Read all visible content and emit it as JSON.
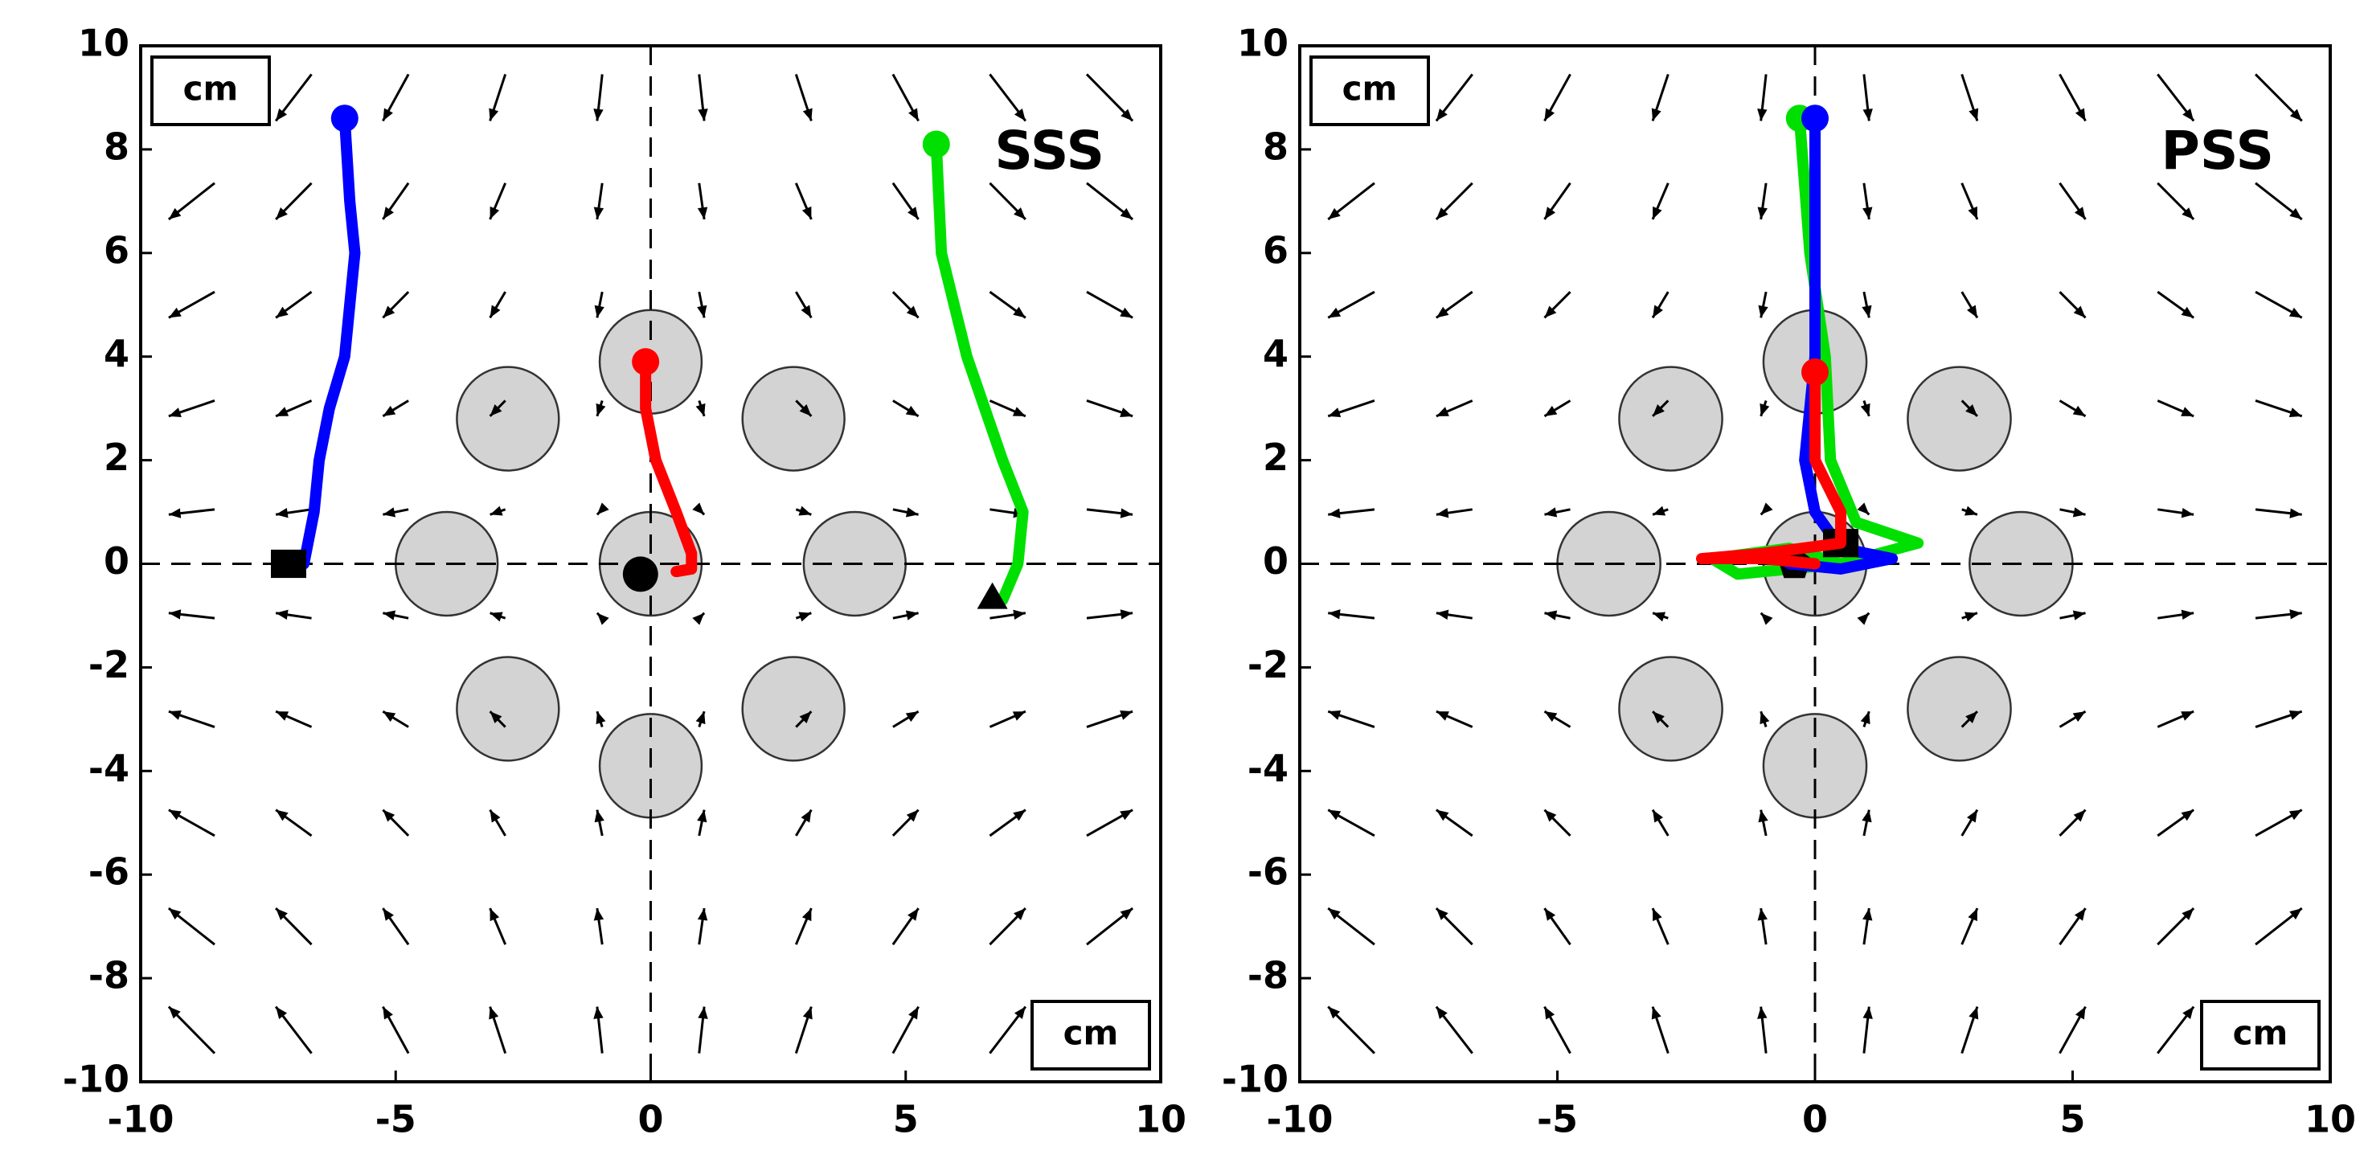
{
  "chart_data": [
    {
      "type": "vector_field",
      "label": "SSS",
      "unit_label": "cm",
      "xlim": [
        -10,
        10
      ],
      "ylim": [
        -10,
        10
      ],
      "xticks": [
        -10,
        -5,
        0,
        5,
        10
      ],
      "yticks": [
        -10,
        -8,
        -6,
        -4,
        -2,
        0,
        2,
        4,
        6,
        8,
        10
      ],
      "targets": {
        "x": [
          0,
          -2.8,
          2.8,
          -4,
          0,
          4,
          -2.8,
          2.8,
          0
        ],
        "y": [
          3.9,
          2.8,
          2.8,
          0,
          0,
          0,
          -2.8,
          -2.8,
          -3.9
        ],
        "radius": 1,
        "color": "#d3d3d3"
      },
      "field": {
        "x": [
          -9,
          -7,
          -5,
          -3,
          -1,
          1,
          3,
          5,
          7,
          9
        ],
        "y": [
          -9,
          -7,
          -5,
          -3,
          -1,
          1,
          3,
          5,
          7,
          9
        ],
        "u": [
          [
            -0.9,
            -0.7,
            -0.5,
            -0.3,
            -0.1,
            0.1,
            0.3,
            0.5,
            0.7,
            0.9
          ],
          [
            -0.9,
            -0.7,
            -0.5,
            -0.3,
            -0.1,
            0.1,
            0.3,
            0.5,
            0.7,
            0.9
          ],
          [
            -0.9,
            -0.7,
            -0.5,
            -0.3,
            -0.1,
            0.1,
            0.3,
            0.5,
            0.7,
            0.9
          ],
          [
            -0.9,
            -0.7,
            -0.5,
            -0.3,
            -0.1,
            0.1,
            0.3,
            0.5,
            0.7,
            0.9
          ],
          [
            -0.9,
            -0.7,
            -0.5,
            -0.3,
            -0.1,
            0.1,
            0.3,
            0.5,
            0.7,
            0.9
          ],
          [
            -0.9,
            -0.7,
            -0.5,
            -0.3,
            -0.1,
            0.1,
            0.3,
            0.5,
            0.7,
            0.9
          ],
          [
            -0.9,
            -0.7,
            -0.5,
            -0.3,
            -0.1,
            0.1,
            0.3,
            0.5,
            0.7,
            0.9
          ],
          [
            -0.9,
            -0.7,
            -0.5,
            -0.3,
            -0.1,
            0.1,
            0.3,
            0.5,
            0.7,
            0.9
          ],
          [
            -0.9,
            -0.7,
            -0.5,
            -0.3,
            -0.1,
            0.1,
            0.3,
            0.5,
            0.7,
            0.9
          ],
          [
            -0.9,
            -0.7,
            -0.5,
            -0.3,
            -0.1,
            0.1,
            0.3,
            0.5,
            0.7,
            0.9
          ]
        ],
        "v": [
          [
            0.9,
            0.9,
            0.9,
            0.9,
            0.9,
            0.9,
            0.9,
            0.9,
            0.9,
            0.9
          ],
          [
            0.7,
            0.7,
            0.7,
            0.7,
            0.7,
            0.7,
            0.7,
            0.7,
            0.7,
            0.7
          ],
          [
            0.5,
            0.5,
            0.5,
            0.5,
            0.5,
            0.5,
            0.5,
            0.5,
            0.5,
            0.5
          ],
          [
            0.3,
            0.3,
            0.3,
            0.3,
            0.3,
            0.3,
            0.3,
            0.3,
            0.3,
            0.3
          ],
          [
            0.1,
            0.1,
            0.1,
            0.1,
            0.1,
            0.1,
            0.1,
            0.1,
            0.1,
            0.1
          ],
          [
            -0.1,
            -0.1,
            -0.1,
            -0.1,
            -0.1,
            -0.1,
            -0.1,
            -0.1,
            -0.1,
            -0.1
          ],
          [
            -0.3,
            -0.3,
            -0.3,
            -0.3,
            -0.3,
            -0.3,
            -0.3,
            -0.3,
            -0.3,
            -0.3
          ],
          [
            -0.5,
            -0.5,
            -0.5,
            -0.5,
            -0.5,
            -0.5,
            -0.5,
            -0.5,
            -0.5,
            -0.5
          ],
          [
            -0.7,
            -0.7,
            -0.7,
            -0.7,
            -0.7,
            -0.7,
            -0.7,
            -0.7,
            -0.7,
            -0.7
          ],
          [
            -0.9,
            -0.9,
            -0.9,
            -0.9,
            -0.9,
            -0.9,
            -0.9,
            -0.9,
            -0.9,
            -0.9
          ]
        ]
      },
      "series": [
        {
          "color": "#0000ff",
          "x": [
            -6.0,
            -5.9,
            -5.8,
            -5.9,
            -6.0,
            -6.3,
            -6.5,
            -6.6,
            -6.8
          ],
          "y": [
            8.6,
            7,
            6,
            5,
            4,
            3,
            2,
            1,
            0
          ],
          "end_marker": {
            "shape": "square",
            "x": -7.1,
            "y": 0
          }
        },
        {
          "color": "#ff0000",
          "x": [
            -0.1,
            -0.1,
            0.1,
            0.5,
            0.8,
            0.8,
            0.5
          ],
          "y": [
            3.9,
            3,
            2,
            1,
            0.2,
            -0.1,
            -0.15
          ],
          "end_marker": {
            "shape": "circle",
            "x": -0.2,
            "y": -0.2
          }
        },
        {
          "color": "#00e000",
          "x": [
            5.6,
            5.7,
            6.2,
            6.9,
            7.3,
            7.2,
            6.9
          ],
          "y": [
            8.1,
            6,
            4,
            2,
            1,
            0,
            -0.7
          ],
          "end_marker": {
            "shape": "triangle",
            "x": 6.7,
            "y": -0.7
          }
        }
      ]
    },
    {
      "type": "vector_field",
      "label": "PSS",
      "unit_label": "cm",
      "xlim": [
        -10,
        10
      ],
      "ylim": [
        -10,
        10
      ],
      "xticks": [
        -10,
        -5,
        0,
        5,
        10
      ],
      "yticks": [
        -10,
        -8,
        -6,
        -4,
        -2,
        0,
        2,
        4,
        6,
        8,
        10
      ],
      "targets": {
        "x": [
          0,
          -2.8,
          2.8,
          -4,
          0,
          4,
          -2.8,
          2.8,
          0
        ],
        "y": [
          3.9,
          2.8,
          2.8,
          0,
          0,
          0,
          -2.8,
          -2.8,
          -3.9
        ],
        "radius": 1,
        "color": "#d3d3d3"
      },
      "field": {
        "x": [
          -9,
          -7,
          -5,
          -3,
          -1,
          1,
          3,
          5,
          7,
          9
        ],
        "y": [
          -9,
          -7,
          -5,
          -3,
          -1,
          1,
          3,
          5,
          7,
          9
        ],
        "u": [
          [
            -0.9,
            -0.7,
            -0.5,
            -0.3,
            -0.1,
            0.1,
            0.3,
            0.5,
            0.7,
            0.9
          ],
          [
            -0.9,
            -0.7,
            -0.5,
            -0.3,
            -0.1,
            0.1,
            0.3,
            0.5,
            0.7,
            0.9
          ],
          [
            -0.9,
            -0.7,
            -0.5,
            -0.3,
            -0.1,
            0.1,
            0.3,
            0.5,
            0.7,
            0.9
          ],
          [
            -0.9,
            -0.7,
            -0.5,
            -0.3,
            -0.1,
            0.1,
            0.3,
            0.5,
            0.7,
            0.9
          ],
          [
            -0.9,
            -0.7,
            -0.5,
            -0.3,
            -0.1,
            0.1,
            0.3,
            0.5,
            0.7,
            0.9
          ],
          [
            -0.9,
            -0.7,
            -0.5,
            -0.3,
            -0.1,
            0.1,
            0.3,
            0.5,
            0.7,
            0.9
          ],
          [
            -0.9,
            -0.7,
            -0.5,
            -0.3,
            -0.1,
            0.1,
            0.3,
            0.5,
            0.7,
            0.9
          ],
          [
            -0.9,
            -0.7,
            -0.5,
            -0.3,
            -0.1,
            0.1,
            0.3,
            0.5,
            0.7,
            0.9
          ],
          [
            -0.9,
            -0.7,
            -0.5,
            -0.3,
            -0.1,
            0.1,
            0.3,
            0.5,
            0.7,
            0.9
          ],
          [
            -0.9,
            -0.7,
            -0.5,
            -0.3,
            -0.1,
            0.1,
            0.3,
            0.5,
            0.7,
            0.9
          ]
        ],
        "v": [
          [
            0.9,
            0.9,
            0.9,
            0.9,
            0.9,
            0.9,
            0.9,
            0.9,
            0.9,
            0.9
          ],
          [
            0.7,
            0.7,
            0.7,
            0.7,
            0.7,
            0.7,
            0.7,
            0.7,
            0.7,
            0.7
          ],
          [
            0.5,
            0.5,
            0.5,
            0.5,
            0.5,
            0.5,
            0.5,
            0.5,
            0.5,
            0.5
          ],
          [
            0.3,
            0.3,
            0.3,
            0.3,
            0.3,
            0.3,
            0.3,
            0.3,
            0.3,
            0.3
          ],
          [
            0.1,
            0.1,
            0.1,
            0.1,
            0.1,
            0.1,
            0.1,
            0.1,
            0.1,
            0.1
          ],
          [
            -0.1,
            -0.1,
            -0.1,
            -0.1,
            -0.1,
            -0.1,
            -0.1,
            -0.1,
            -0.1,
            -0.1
          ],
          [
            -0.3,
            -0.3,
            -0.3,
            -0.3,
            -0.3,
            -0.3,
            -0.3,
            -0.3,
            -0.3,
            -0.3
          ],
          [
            -0.5,
            -0.5,
            -0.5,
            -0.5,
            -0.5,
            -0.5,
            -0.5,
            -0.5,
            -0.5,
            -0.5
          ],
          [
            -0.7,
            -0.7,
            -0.7,
            -0.7,
            -0.7,
            -0.7,
            -0.7,
            -0.7,
            -0.7,
            -0.7
          ],
          [
            -0.9,
            -0.9,
            -0.9,
            -0.9,
            -0.9,
            -0.9,
            -0.9,
            -0.9,
            -0.9,
            -0.9
          ]
        ]
      },
      "series": [
        {
          "color": "#00e000",
          "x": [
            -0.3,
            -0.1,
            0.2,
            0.3,
            0.8,
            2,
            0.5,
            -1.5,
            -2,
            -0.5,
            0.5
          ],
          "y": [
            8.6,
            6,
            4,
            2,
            0.8,
            0.4,
            0,
            -0.2,
            0.1,
            0.3,
            0
          ],
          "end_marker": {
            "shape": "pentagon",
            "x": -0.4,
            "y": 0
          }
        },
        {
          "color": "#0000ff",
          "x": [
            0,
            0,
            0,
            -0.2,
            0,
            0.5,
            1.5,
            0.5,
            -0.5
          ],
          "y": [
            8.6,
            6,
            4,
            2,
            1,
            0.3,
            0.1,
            -0.1,
            0
          ],
          "end_marker": {
            "shape": "square",
            "x": 0.5,
            "y": 0.4
          }
        },
        {
          "color": "#ff0000",
          "x": [
            0,
            0,
            0.5,
            0.5,
            -1,
            -2.2,
            -1,
            0
          ],
          "y": [
            3.7,
            2,
            1,
            0.4,
            0.2,
            0.1,
            0.1,
            0
          ]
        }
      ]
    }
  ]
}
